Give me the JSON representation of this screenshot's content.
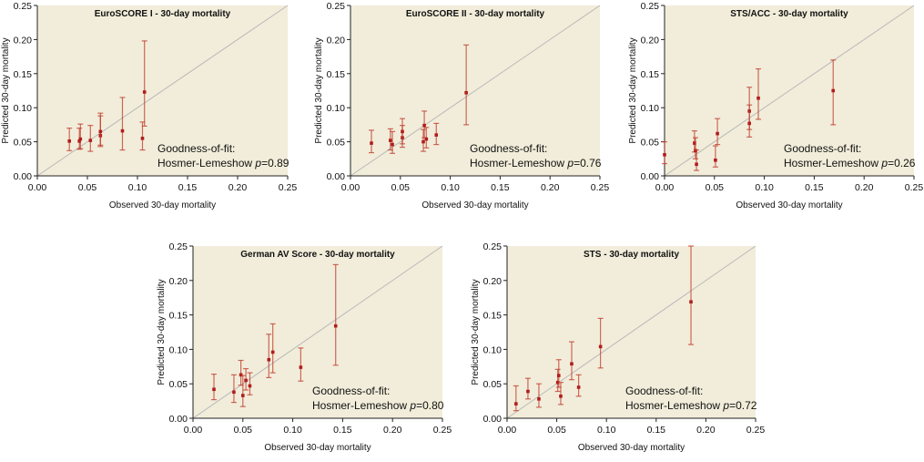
{
  "chart_data": [
    {
      "type": "scatter",
      "title": "EuroSCORE I - 30-day  mortality",
      "xlabel": "Observed 30-day mortality",
      "ylabel": "Predicted 30-day mortality",
      "xlim": [
        0,
        0.25
      ],
      "ylim": [
        0,
        0.25
      ],
      "ticks": [
        "0.00",
        "0.05",
        "0.10",
        "0.15",
        "0.20",
        "0.25"
      ],
      "gof_line1": "Goodness-of-fit:",
      "gof_line2": "Hosmer-Lemeshow ",
      "p_label": "p",
      "p_value": "=0.89",
      "reference_line": "identity",
      "points": [
        {
          "x": 0.032,
          "y": 0.051,
          "lo": 0.037,
          "hi": 0.07
        },
        {
          "x": 0.042,
          "y": 0.051,
          "lo": 0.039,
          "hi": 0.07
        },
        {
          "x": 0.043,
          "y": 0.054,
          "lo": 0.04,
          "hi": 0.076
        },
        {
          "x": 0.053,
          "y": 0.052,
          "lo": 0.036,
          "hi": 0.074
        },
        {
          "x": 0.063,
          "y": 0.059,
          "lo": 0.043,
          "hi": 0.088
        },
        {
          "x": 0.063,
          "y": 0.065,
          "lo": 0.045,
          "hi": 0.092
        },
        {
          "x": 0.085,
          "y": 0.066,
          "lo": 0.038,
          "hi": 0.115
        },
        {
          "x": 0.105,
          "y": 0.055,
          "lo": 0.038,
          "hi": 0.079
        },
        {
          "x": 0.107,
          "y": 0.123,
          "lo": 0.073,
          "hi": 0.198
        }
      ]
    },
    {
      "type": "scatter",
      "title": "EuroSCORE II - 30-day  mortality",
      "xlabel": "Observed 30-day mortality",
      "ylabel": "Predicted 30-day mortality",
      "xlim": [
        0,
        0.25
      ],
      "ylim": [
        0,
        0.25
      ],
      "ticks": [
        "0.00",
        "0.05",
        "0.10",
        "0.15",
        "0.20",
        "0.25"
      ],
      "gof_line1": "Goodness-of-fit:",
      "gof_line2": "Hosmer-Lemeshow ",
      "p_label": "p",
      "p_value": "=0.76",
      "reference_line": "identity",
      "points": [
        {
          "x": 0.021,
          "y": 0.048,
          "lo": 0.034,
          "hi": 0.067
        },
        {
          "x": 0.04,
          "y": 0.052,
          "lo": 0.038,
          "hi": 0.069
        },
        {
          "x": 0.042,
          "y": 0.046,
          "lo": 0.033,
          "hi": 0.065
        },
        {
          "x": 0.052,
          "y": 0.056,
          "lo": 0.042,
          "hi": 0.074
        },
        {
          "x": 0.052,
          "y": 0.065,
          "lo": 0.047,
          "hi": 0.084
        },
        {
          "x": 0.073,
          "y": 0.05,
          "lo": 0.036,
          "hi": 0.068
        },
        {
          "x": 0.074,
          "y": 0.074,
          "lo": 0.056,
          "hi": 0.095
        },
        {
          "x": 0.076,
          "y": 0.054,
          "lo": 0.041,
          "hi": 0.071
        },
        {
          "x": 0.086,
          "y": 0.06,
          "lo": 0.046,
          "hi": 0.077
        },
        {
          "x": 0.116,
          "y": 0.122,
          "lo": 0.075,
          "hi": 0.192
        }
      ]
    },
    {
      "type": "scatter",
      "title": "STS/ACC - 30-day  mortality",
      "xlabel": "Observed 30-day mortality",
      "ylabel": "Predicted 30-day mortality",
      "xlim": [
        0,
        0.25
      ],
      "ylim": [
        0,
        0.25
      ],
      "ticks": [
        "0.00",
        "0.05",
        "0.10",
        "0.15",
        "0.20",
        "0.25"
      ],
      "gof_line1": "Goodness-of-fit:",
      "gof_line2": "Hosmer-Lemeshow ",
      "p_label": "p",
      "p_value": "=0.26",
      "reference_line": "identity",
      "points": [
        {
          "x": 0.0,
          "y": 0.031,
          "lo": 0.018,
          "hi": 0.05
        },
        {
          "x": 0.03,
          "y": 0.048,
          "lo": 0.035,
          "hi": 0.066
        },
        {
          "x": 0.031,
          "y": 0.037,
          "lo": 0.025,
          "hi": 0.056
        },
        {
          "x": 0.032,
          "y": 0.017,
          "lo": 0.008,
          "hi": 0.038
        },
        {
          "x": 0.051,
          "y": 0.023,
          "lo": 0.013,
          "hi": 0.044
        },
        {
          "x": 0.053,
          "y": 0.062,
          "lo": 0.046,
          "hi": 0.084
        },
        {
          "x": 0.085,
          "y": 0.095,
          "lo": 0.068,
          "hi": 0.13
        },
        {
          "x": 0.085,
          "y": 0.077,
          "lo": 0.057,
          "hi": 0.104
        },
        {
          "x": 0.094,
          "y": 0.114,
          "lo": 0.083,
          "hi": 0.157
        },
        {
          "x": 0.169,
          "y": 0.125,
          "lo": 0.075,
          "hi": 0.17
        }
      ]
    },
    {
      "type": "scatter",
      "title": "German AV Score - 30-day  mortality",
      "xlabel": "Observed 30-day mortality",
      "ylabel": "Predicted 30-day mortality",
      "xlim": [
        0,
        0.25
      ],
      "ylim": [
        0,
        0.25
      ],
      "ticks": [
        "0.00",
        "0.05",
        "0.10",
        "0.15",
        "0.20",
        "0.25"
      ],
      "gof_line1": "Goodness-of-fit:",
      "gof_line2": "Hosmer-Lemeshow ",
      "p_label": "p",
      "p_value": "=0.80",
      "reference_line": "identity",
      "points": [
        {
          "x": 0.021,
          "y": 0.042,
          "lo": 0.027,
          "hi": 0.064
        },
        {
          "x": 0.041,
          "y": 0.038,
          "lo": 0.023,
          "hi": 0.063
        },
        {
          "x": 0.048,
          "y": 0.063,
          "lo": 0.048,
          "hi": 0.084
        },
        {
          "x": 0.05,
          "y": 0.033,
          "lo": 0.017,
          "hi": 0.062
        },
        {
          "x": 0.053,
          "y": 0.055,
          "lo": 0.041,
          "hi": 0.072
        },
        {
          "x": 0.057,
          "y": 0.047,
          "lo": 0.034,
          "hi": 0.066
        },
        {
          "x": 0.076,
          "y": 0.085,
          "lo": 0.059,
          "hi": 0.122
        },
        {
          "x": 0.08,
          "y": 0.096,
          "lo": 0.066,
          "hi": 0.137
        },
        {
          "x": 0.108,
          "y": 0.074,
          "lo": 0.054,
          "hi": 0.102
        },
        {
          "x": 0.143,
          "y": 0.134,
          "lo": 0.077,
          "hi": 0.223
        }
      ]
    },
    {
      "type": "scatter",
      "title": "STS - 30-day  mortality",
      "xlabel": "Observed 30-day mortality",
      "ylabel": "Predicted 30-day mortality",
      "xlim": [
        0,
        0.25
      ],
      "ylim": [
        0,
        0.25
      ],
      "ticks": [
        "0.00",
        "0.05",
        "0.10",
        "0.15",
        "0.20",
        "0.25"
      ],
      "gof_line1": "Goodness-of-fit:",
      "gof_line2": "Hosmer-Lemeshow ",
      "p_label": "p",
      "p_value": "=0.72",
      "reference_line": "identity",
      "points": [
        {
          "x": 0.009,
          "y": 0.021,
          "lo": 0.011,
          "hi": 0.047
        },
        {
          "x": 0.021,
          "y": 0.039,
          "lo": 0.028,
          "hi": 0.058
        },
        {
          "x": 0.032,
          "y": 0.028,
          "lo": 0.016,
          "hi": 0.05
        },
        {
          "x": 0.051,
          "y": 0.052,
          "lo": 0.039,
          "hi": 0.071
        },
        {
          "x": 0.052,
          "y": 0.062,
          "lo": 0.045,
          "hi": 0.085
        },
        {
          "x": 0.054,
          "y": 0.032,
          "lo": 0.02,
          "hi": 0.052
        },
        {
          "x": 0.065,
          "y": 0.079,
          "lo": 0.056,
          "hi": 0.111
        },
        {
          "x": 0.072,
          "y": 0.045,
          "lo": 0.032,
          "hi": 0.063
        },
        {
          "x": 0.094,
          "y": 0.104,
          "lo": 0.073,
          "hi": 0.145
        },
        {
          "x": 0.185,
          "y": 0.169,
          "lo": 0.107,
          "hi": 0.25
        }
      ]
    }
  ],
  "colors": {
    "plot_bg": "#f1edda",
    "marker": "#b01c1c",
    "errorbar": "#c0392b",
    "reference": "#b8b8b8"
  }
}
